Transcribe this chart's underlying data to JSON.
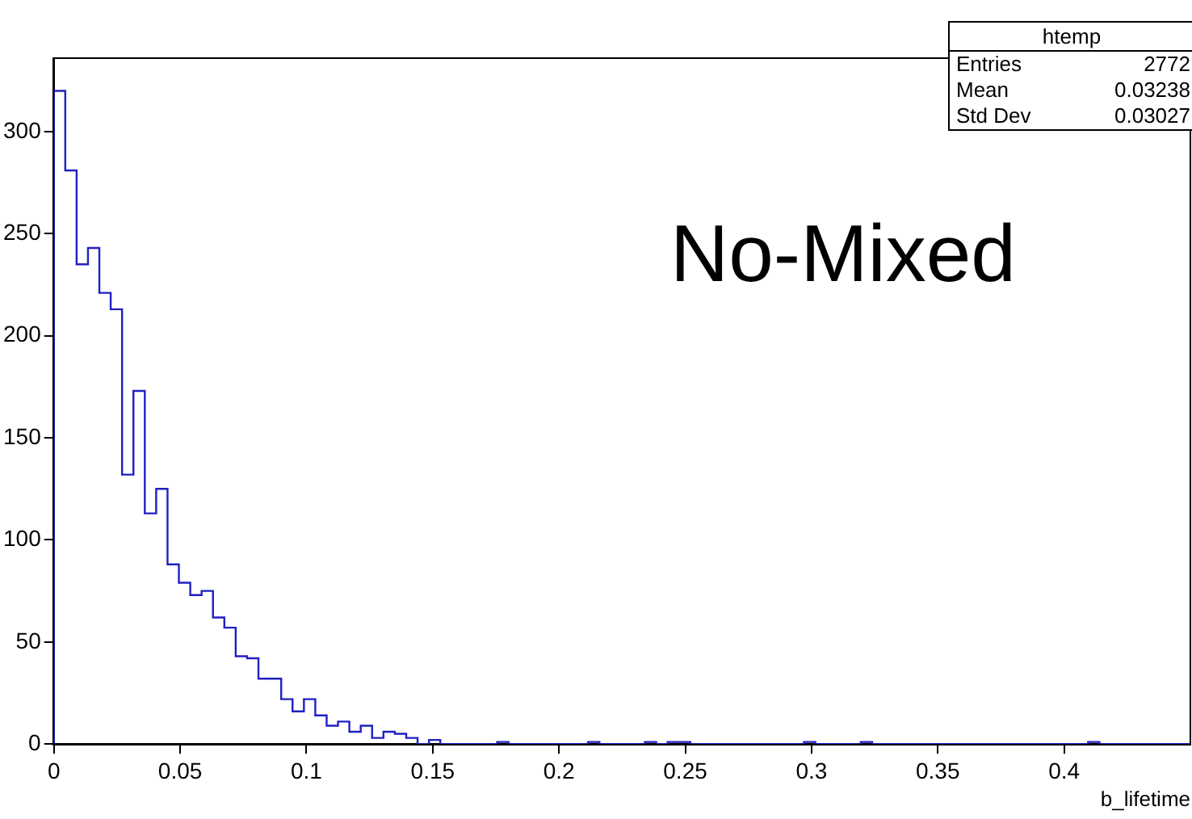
{
  "chart_data": {
    "type": "histogram",
    "title": "htemp",
    "xlabel": "b_lifetime",
    "bins": [
      0,
      0.0045,
      0.009,
      0.0135,
      0.018,
      0.0225,
      0.027,
      0.0315,
      0.036,
      0.0405,
      0.045,
      0.0495,
      0.054,
      0.0585,
      0.063,
      0.0675,
      0.072,
      0.0765,
      0.081,
      0.0855,
      0.09,
      0.0945,
      0.099,
      0.1035,
      0.108,
      0.1125,
      0.117,
      0.1215,
      0.126,
      0.1305,
      0.135,
      0.1395,
      0.144,
      0.1485,
      0.153,
      0.1575,
      0.162,
      0.1665,
      0.171,
      0.1755,
      0.18,
      0.1845,
      0.189,
      0.1935,
      0.198,
      0.2025,
      0.207,
      0.2115,
      0.216,
      0.2205,
      0.225,
      0.2295,
      0.234,
      0.2385,
      0.243,
      0.2475,
      0.252,
      0.2565,
      0.261,
      0.2655,
      0.27,
      0.2745,
      0.279,
      0.2835,
      0.288,
      0.2925,
      0.297,
      0.3015,
      0.306,
      0.3105,
      0.315,
      0.3195,
      0.324,
      0.3285,
      0.333,
      0.3375,
      0.342,
      0.3465,
      0.351,
      0.3555,
      0.36,
      0.3645,
      0.369,
      0.3735,
      0.378,
      0.3825,
      0.387,
      0.3915,
      0.396,
      0.4005,
      0.405,
      0.4095,
      0.414,
      0.4185,
      0.423,
      0.4275,
      0.432,
      0.4365,
      0.441,
      0.4455,
      0.45
    ],
    "values": [
      320,
      281,
      235,
      243,
      221,
      213,
      132,
      173,
      113,
      125,
      88,
      79,
      73,
      75,
      62,
      57,
      43,
      42,
      32,
      32,
      22,
      16,
      22,
      14,
      9,
      11,
      6,
      9,
      3,
      6,
      5,
      3,
      0,
      2,
      0,
      0,
      0,
      0,
      0,
      1,
      0,
      0,
      0,
      0,
      0,
      0,
      0,
      1,
      0,
      0,
      0,
      0,
      1,
      0,
      1,
      1,
      0,
      0,
      0,
      0,
      0,
      0,
      0,
      0,
      0,
      0,
      1,
      0,
      0,
      0,
      0,
      1,
      0,
      0,
      0,
      0,
      0,
      0,
      0,
      0,
      0,
      0,
      0,
      0,
      0,
      0,
      0,
      0,
      0,
      0,
      0,
      1,
      0,
      0,
      0,
      0,
      0,
      0,
      0,
      0
    ],
    "color": "#2020c0",
    "xlim": [
      0,
      0.45
    ],
    "xticks": [
      0,
      0.05,
      0.1,
      0.15,
      0.2,
      0.25,
      0.3,
      0.35,
      0.4
    ],
    "ylim": [
      0,
      336
    ],
    "yticks": [
      0,
      50,
      100,
      150,
      200,
      250,
      300
    ],
    "grid": false,
    "legend": false,
    "annotations": [
      "Entries 2772",
      "Mean 0.03238",
      "Std Dev 0.03027",
      "No-Mixed"
    ]
  }
}
